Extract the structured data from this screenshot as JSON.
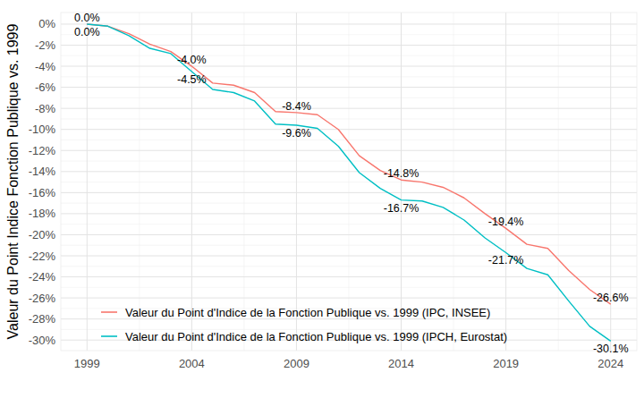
{
  "chart_data": {
    "type": "line",
    "y_label": "Valeur du Point Indice Fonction Publique vs. 1999",
    "x": [
      1999,
      2000,
      2001,
      2002,
      2003,
      2004,
      2005,
      2006,
      2007,
      2008,
      2009,
      2010,
      2011,
      2012,
      2013,
      2014,
      2015,
      2016,
      2017,
      2018,
      2019,
      2020,
      2021,
      2022,
      2023,
      2024
    ],
    "series": [
      {
        "name": "Valeur du Point d'Indice de la Fonction Publique vs. 1999 (IPC, INSEE)",
        "color": "#F8766D",
        "values": [
          0,
          -0.2,
          -0.9,
          -1.9,
          -2.6,
          -4.0,
          -5.6,
          -5.8,
          -6.5,
          -8.3,
          -8.4,
          -8.6,
          -10.0,
          -12.5,
          -13.9,
          -14.8,
          -15.0,
          -15.5,
          -16.5,
          -18.0,
          -19.4,
          -20.9,
          -21.3,
          -23.4,
          -25.2,
          -26.6
        ],
        "value_labels": [
          "0.0%",
          null,
          null,
          null,
          null,
          "-4.0%",
          null,
          null,
          null,
          null,
          "-8.4%",
          null,
          null,
          null,
          null,
          "-14.8%",
          null,
          null,
          null,
          null,
          "-19.4%",
          null,
          null,
          null,
          null,
          "-26.6%"
        ]
      },
      {
        "name": "Valeur du Point d'Indice de la Fonction Publique vs. 1999 (IPCH, Eurostat)",
        "color": "#00BFC4",
        "values": [
          0,
          -0.2,
          -1.1,
          -2.3,
          -2.8,
          -4.5,
          -6.2,
          -6.5,
          -7.3,
          -9.5,
          -9.6,
          -9.9,
          -11.6,
          -14.1,
          -15.6,
          -16.7,
          -16.8,
          -17.4,
          -18.6,
          -20.3,
          -21.7,
          -23.2,
          -23.8,
          -26.3,
          -28.7,
          -30.1
        ],
        "value_labels": [
          "0.0%",
          null,
          null,
          null,
          null,
          "-4.5%",
          null,
          null,
          null,
          null,
          "-9.6%",
          null,
          null,
          null,
          null,
          "-16.7%",
          null,
          null,
          null,
          null,
          "-21.7%",
          null,
          null,
          null,
          null,
          "-30.1%"
        ]
      }
    ],
    "xlim": [
      1997.75,
      2025.25
    ],
    "xticks": [
      1999,
      2004,
      2009,
      2014,
      2019,
      2024
    ],
    "ylim": [
      -31,
      1.1
    ],
    "yticks": [
      {
        "value": 0,
        "label": "0%"
      },
      {
        "value": -2,
        "label": "-2%"
      },
      {
        "value": -4,
        "label": "-4%"
      },
      {
        "value": -6,
        "label": "-6%"
      },
      {
        "value": -8,
        "label": "-8%"
      },
      {
        "value": -10,
        "label": "-10%"
      },
      {
        "value": -12,
        "label": "-12%"
      },
      {
        "value": -14,
        "label": "-14%"
      },
      {
        "value": -16,
        "label": "-16%"
      },
      {
        "value": -18,
        "label": "-18%"
      },
      {
        "value": -20,
        "label": "-20%"
      },
      {
        "value": -22,
        "label": "-22%"
      },
      {
        "value": -24,
        "label": "-24%"
      },
      {
        "value": -26,
        "label": "-26%"
      },
      {
        "value": -28,
        "label": "-28%"
      },
      {
        "value": -30,
        "label": "-30%"
      }
    ],
    "grid": true,
    "legend": "bottom-left",
    "data_labels": true
  }
}
